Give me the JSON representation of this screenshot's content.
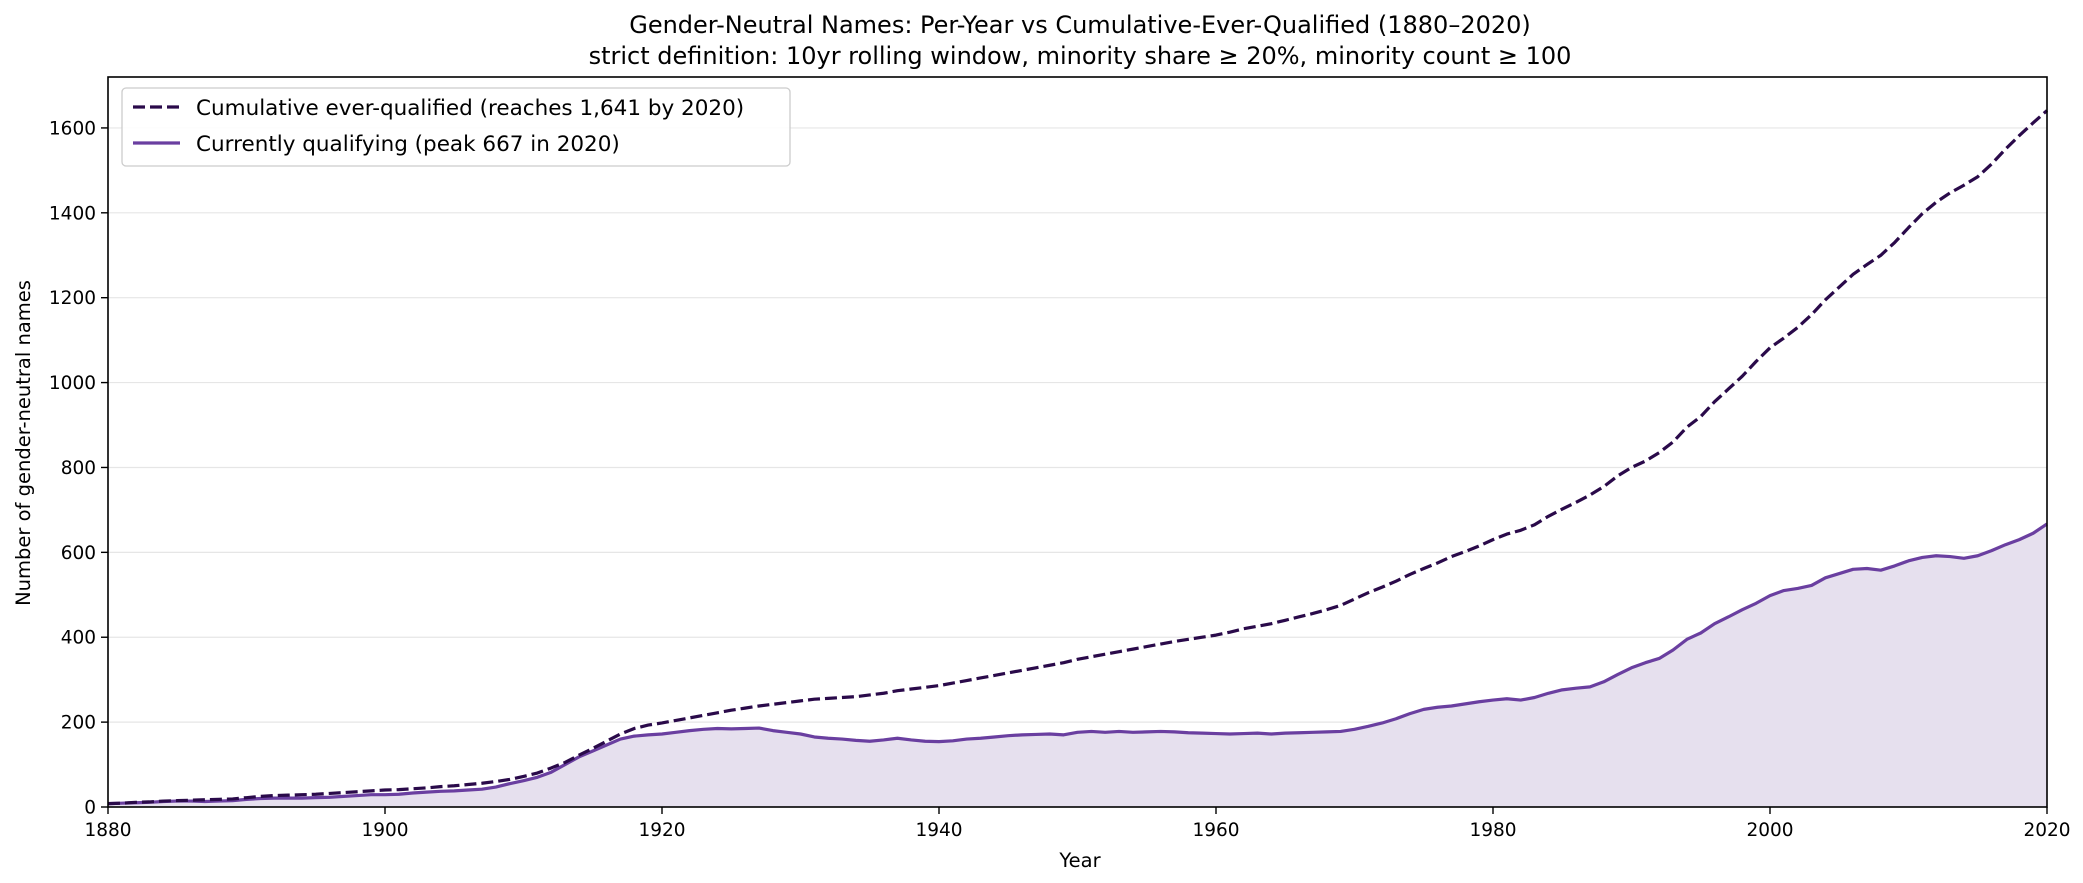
{
  "chart_data": {
    "type": "line",
    "title": "Gender-Neutral Names: Per-Year vs Cumulative-Ever-Qualified (1880–2020)",
    "subtitle": "strict definition: 10yr rolling window, minority share ≥ 20%, minority count ≥ 100",
    "xlabel": "Year",
    "ylabel": "Number of gender-neutral names",
    "xlim": [
      1880,
      2020
    ],
    "ylim": [
      0,
      1720
    ],
    "xticks": [
      1880,
      1900,
      1920,
      1940,
      1960,
      1980,
      2000,
      2020
    ],
    "yticks": [
      0,
      200,
      400,
      600,
      800,
      1000,
      1200,
      1400,
      1600
    ],
    "grid": "horizontal",
    "legend_position": "top-left",
    "colors": {
      "cumulative": "#2a0a4a",
      "current": "#6a3fa0",
      "current_fill": "#e6e0ee"
    },
    "x": [
      1880,
      1881,
      1882,
      1883,
      1884,
      1885,
      1886,
      1887,
      1888,
      1889,
      1890,
      1891,
      1892,
      1893,
      1894,
      1895,
      1896,
      1897,
      1898,
      1899,
      1900,
      1901,
      1902,
      1903,
      1904,
      1905,
      1906,
      1907,
      1908,
      1909,
      1910,
      1911,
      1912,
      1913,
      1914,
      1915,
      1916,
      1917,
      1918,
      1919,
      1920,
      1921,
      1922,
      1923,
      1924,
      1925,
      1926,
      1927,
      1928,
      1929,
      1930,
      1931,
      1932,
      1933,
      1934,
      1935,
      1936,
      1937,
      1938,
      1939,
      1940,
      1941,
      1942,
      1943,
      1944,
      1945,
      1946,
      1947,
      1948,
      1949,
      1950,
      1951,
      1952,
      1953,
      1954,
      1955,
      1956,
      1957,
      1958,
      1959,
      1960,
      1961,
      1962,
      1963,
      1964,
      1965,
      1966,
      1967,
      1968,
      1969,
      1970,
      1971,
      1972,
      1973,
      1974,
      1975,
      1976,
      1977,
      1978,
      1979,
      1980,
      1981,
      1982,
      1983,
      1984,
      1985,
      1986,
      1987,
      1988,
      1989,
      1990,
      1991,
      1992,
      1993,
      1994,
      1995,
      1996,
      1997,
      1998,
      1999,
      2000,
      2001,
      2002,
      2003,
      2004,
      2005,
      2006,
      2007,
      2008,
      2009,
      2010,
      2011,
      2012,
      2013,
      2014,
      2015,
      2016,
      2017,
      2018,
      2019,
      2020
    ],
    "series": [
      {
        "name": "Cumulative ever-qualified (reaches 1,641 by 2020)",
        "style": "dashed",
        "values": [
          8,
          9,
          11,
          12,
          14,
          15,
          16,
          17,
          18,
          19,
          22,
          25,
          27,
          28,
          29,
          30,
          32,
          34,
          36,
          38,
          40,
          41,
          43,
          45,
          48,
          50,
          53,
          56,
          60,
          65,
          72,
          80,
          92,
          105,
          122,
          138,
          155,
          172,
          185,
          193,
          198,
          204,
          210,
          216,
          222,
          228,
          233,
          238,
          242,
          246,
          250,
          254,
          256,
          258,
          260,
          264,
          268,
          274,
          278,
          282,
          286,
          292,
          298,
          304,
          310,
          316,
          322,
          328,
          334,
          340,
          348,
          354,
          360,
          366,
          372,
          378,
          384,
          390,
          395,
          400,
          405,
          412,
          420,
          426,
          432,
          440,
          448,
          456,
          465,
          475,
          490,
          505,
          518,
          532,
          548,
          562,
          575,
          590,
          602,
          615,
          630,
          643,
          652,
          665,
          685,
          702,
          718,
          735,
          755,
          780,
          800,
          815,
          835,
          860,
          895,
          920,
          955,
          985,
          1015,
          1050,
          1082,
          1105,
          1130,
          1160,
          1195,
          1225,
          1255,
          1278,
          1300,
          1330,
          1365,
          1398,
          1425,
          1447,
          1465,
          1485,
          1515,
          1550,
          1582,
          1612,
          1641
        ]
      },
      {
        "name": "Currently qualifying (peak 667 in 2020)",
        "style": "solid",
        "fill": true,
        "values": [
          8,
          9,
          10,
          11,
          13,
          14,
          14,
          13,
          14,
          15,
          18,
          20,
          21,
          21,
          21,
          22,
          23,
          25,
          27,
          29,
          29,
          30,
          33,
          35,
          37,
          38,
          40,
          42,
          47,
          55,
          62,
          70,
          82,
          100,
          118,
          132,
          146,
          160,
          167,
          170,
          172,
          176,
          180,
          183,
          185,
          184,
          185,
          186,
          180,
          176,
          172,
          165,
          162,
          160,
          157,
          155,
          158,
          162,
          158,
          155,
          154,
          156,
          160,
          162,
          165,
          168,
          170,
          171,
          172,
          170,
          176,
          178,
          176,
          178,
          176,
          177,
          178,
          177,
          175,
          174,
          173,
          172,
          173,
          174,
          172,
          174,
          175,
          176,
          177,
          178,
          183,
          190,
          198,
          208,
          220,
          230,
          235,
          238,
          243,
          248,
          252,
          255,
          252,
          258,
          268,
          276,
          280,
          283,
          295,
          312,
          328,
          340,
          350,
          370,
          395,
          410,
          432,
          448,
          465,
          480,
          498,
          510,
          515,
          522,
          540,
          550,
          560,
          562,
          558,
          568,
          580,
          588,
          592,
          590,
          586,
          592,
          604,
          618,
          630,
          645,
          667
        ]
      }
    ]
  }
}
